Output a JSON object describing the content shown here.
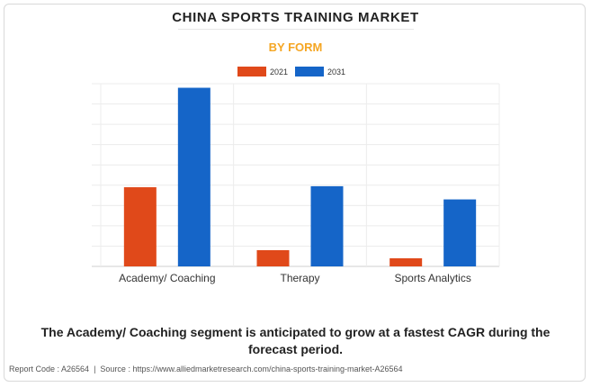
{
  "header": {
    "title": "CHINA SPORTS TRAINING MARKET",
    "subtitle": "BY FORM"
  },
  "caption": "The Academy/ Coaching segment is anticipated to grow at a fastest CAGR during the forecast period.",
  "footer": {
    "report_code": "Report Code : A26564",
    "separator": "|",
    "source": "Source : https://www.alliedmarketresearch.com/china-sports-training-market-A26564"
  },
  "colors": {
    "series_2021": "#e0491a",
    "series_2031": "#1565c8",
    "subtitle": "#f5a623"
  },
  "chart_data": {
    "type": "bar",
    "title": "CHINA SPORTS TRAINING MARKET",
    "subtitle": "BY FORM",
    "categories": [
      "Academy/ Coaching",
      "Therapy",
      "Sports Analytics"
    ],
    "series": [
      {
        "name": "2021",
        "color": "#e0491a",
        "values": [
          3.9,
          0.8,
          0.4
        ]
      },
      {
        "name": "2031",
        "color": "#1565c8",
        "values": [
          8.8,
          3.95,
          3.3
        ]
      }
    ],
    "ylim": [
      0,
      9
    ],
    "gridlines": 9,
    "y_tick_labels_shown": false,
    "grid": true,
    "legend_position": "top-center"
  }
}
